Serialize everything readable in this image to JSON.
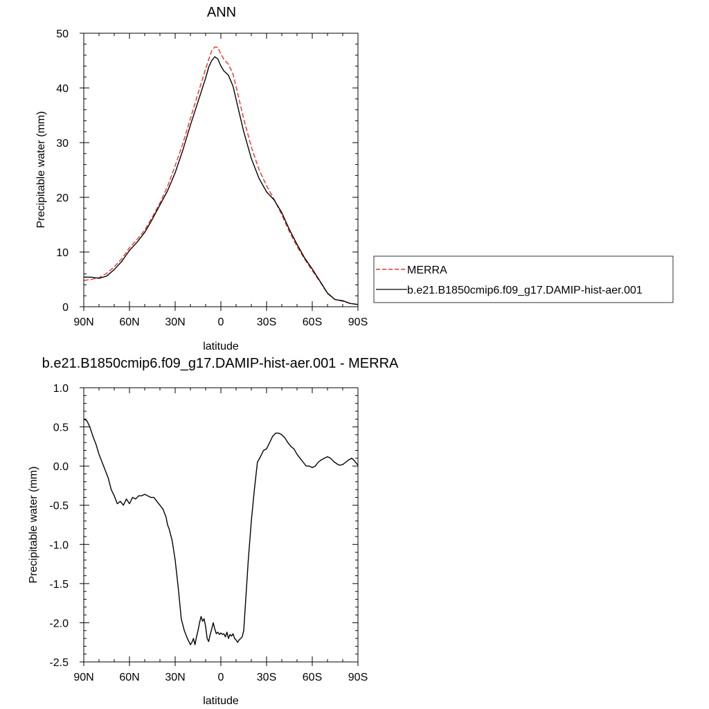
{
  "chart_data": [
    {
      "type": "line",
      "title": "ANN",
      "xlabel": "latitude",
      "ylabel": "Precipitable water (mm)",
      "x_tick_labels": [
        "90N",
        "60N",
        "30N",
        "0",
        "30S",
        "60S",
        "90S"
      ],
      "x_ticks": [
        90,
        60,
        30,
        0,
        -30,
        -60,
        -90
      ],
      "xlim": [
        90,
        -90
      ],
      "ylim": [
        0,
        50
      ],
      "y_ticks": [
        0,
        10,
        20,
        30,
        40,
        50
      ],
      "y_tick_labels": [
        "0",
        "10",
        "20",
        "30",
        "40",
        "50"
      ],
      "grid": false,
      "legend_placement": "right, outside plot",
      "x": [
        90,
        85,
        80,
        75,
        70,
        65,
        60,
        55,
        50,
        45,
        40,
        35,
        30,
        25,
        20,
        15,
        10,
        8,
        6,
        4,
        2,
        0,
        -2,
        -5,
        -8,
        -10,
        -15,
        -20,
        -25,
        -30,
        -35,
        -40,
        -45,
        -50,
        -55,
        -60,
        -65,
        -70,
        -75,
        -80,
        -85,
        -90
      ],
      "series": [
        {
          "name": "MERRA",
          "color": "#e8332a",
          "dash": "dashed",
          "values": [
            4.8,
            5.0,
            5.3,
            6.1,
            7.3,
            8.8,
            10.8,
            12.3,
            14.0,
            16.4,
            19.0,
            22.0,
            25.8,
            29.8,
            34.4,
            39.0,
            43.5,
            45.2,
            46.8,
            47.5,
            47.4,
            46.2,
            45.2,
            44.3,
            42.5,
            40.2,
            34.3,
            29.2,
            25.1,
            22.1,
            19.6,
            16.8,
            13.7,
            11.0,
            8.7,
            6.6,
            4.6,
            2.4,
            1.3,
            1.0,
            0.6,
            0.4
          ]
        },
        {
          "name": "b.e21.B1850cmip6.f09_g17.DAMIP-hist-aer.001",
          "color": "#000000",
          "dash": "solid",
          "values": [
            5.4,
            5.4,
            5.2,
            5.6,
            6.8,
            8.3,
            10.3,
            11.8,
            13.6,
            16.0,
            18.6,
            21.2,
            24.5,
            28.6,
            33.2,
            37.5,
            41.8,
            43.8,
            45.0,
            45.7,
            45.3,
            44.0,
            43.1,
            42.3,
            40.3,
            37.9,
            32.0,
            27.1,
            23.5,
            21.0,
            19.5,
            17.2,
            14.1,
            11.4,
            8.9,
            6.9,
            4.7,
            2.5,
            1.3,
            1.1,
            0.6,
            0.4
          ]
        }
      ]
    },
    {
      "type": "line",
      "title": "b.e21.B1850cmip6.f09_g17.DAMIP-hist-aer.001 - MERRA",
      "xlabel": "latitude",
      "ylabel": "Precipitable water (mm)",
      "x_tick_labels": [
        "90N",
        "60N",
        "30N",
        "0",
        "30S",
        "60S",
        "90S"
      ],
      "x_ticks": [
        90,
        60,
        30,
        0,
        -30,
        -60,
        -90
      ],
      "xlim": [
        90,
        -90
      ],
      "ylim": [
        -2.5,
        1.0
      ],
      "y_ticks": [
        -2.5,
        -2.0,
        -1.5,
        -1.0,
        -0.5,
        0.0,
        0.5,
        1.0
      ],
      "y_tick_labels": [
        "-2.5",
        "-2.0",
        "-1.5",
        "-1.0",
        "-0.5",
        "0.0",
        "0.5",
        "1.0"
      ],
      "grid": false,
      "x": [
        90,
        88,
        86,
        84,
        82,
        80,
        78,
        76,
        74,
        72,
        70,
        68,
        66,
        64,
        62,
        60,
        58,
        56,
        54,
        52,
        50,
        48,
        46,
        44,
        42,
        40,
        38,
        36,
        35,
        34,
        32,
        30,
        28,
        26,
        24,
        22,
        20,
        19,
        18,
        17,
        16,
        15,
        14,
        13,
        12,
        11,
        10,
        9,
        8,
        7,
        6,
        5,
        4,
        3,
        2,
        1,
        0,
        -1,
        -2,
        -3,
        -4,
        -5,
        -6,
        -7,
        -8,
        -9,
        -10,
        -11,
        -12,
        -13,
        -14,
        -15,
        -16,
        -17,
        -18,
        -20,
        -22,
        -24,
        -26,
        -28,
        -30,
        -32,
        -34,
        -36,
        -38,
        -40,
        -42,
        -44,
        -46,
        -48,
        -50,
        -52,
        -54,
        -56,
        -58,
        -60,
        -62,
        -64,
        -66,
        -68,
        -70,
        -72,
        -74,
        -76,
        -78,
        -80,
        -82,
        -84,
        -86,
        -88,
        -90
      ],
      "series": [
        {
          "name": "",
          "color": "#000000",
          "dash": "solid",
          "values": [
            0.6,
            0.58,
            0.5,
            0.38,
            0.28,
            0.15,
            0.05,
            -0.05,
            -0.15,
            -0.3,
            -0.38,
            -0.48,
            -0.45,
            -0.5,
            -0.42,
            -0.48,
            -0.4,
            -0.42,
            -0.38,
            -0.38,
            -0.36,
            -0.38,
            -0.4,
            -0.4,
            -0.45,
            -0.5,
            -0.55,
            -0.65,
            -0.75,
            -0.8,
            -0.95,
            -1.2,
            -1.55,
            -1.95,
            -2.1,
            -2.2,
            -2.28,
            -2.25,
            -2.2,
            -2.28,
            -2.18,
            -2.1,
            -2.0,
            -1.92,
            -1.98,
            -1.95,
            -2.05,
            -2.2,
            -2.24,
            -2.15,
            -2.08,
            -2.0,
            -2.08,
            -2.14,
            -2.12,
            -2.15,
            -2.13,
            -2.15,
            -2.14,
            -2.18,
            -2.12,
            -2.2,
            -2.15,
            -2.17,
            -2.14,
            -2.2,
            -2.22,
            -2.25,
            -2.22,
            -2.2,
            -2.18,
            -2.1,
            -1.8,
            -1.5,
            -1.2,
            -0.7,
            -0.3,
            0.05,
            0.12,
            0.2,
            0.22,
            0.3,
            0.38,
            0.42,
            0.42,
            0.4,
            0.36,
            0.3,
            0.25,
            0.22,
            0.15,
            0.1,
            0.05,
            0.0,
            0.0,
            -0.02,
            0.0,
            0.05,
            0.08,
            0.1,
            0.12,
            0.1,
            0.06,
            0.03,
            0.01,
            0.02,
            0.05,
            0.08,
            0.1,
            0.06,
            0.01
          ]
        }
      ]
    }
  ]
}
